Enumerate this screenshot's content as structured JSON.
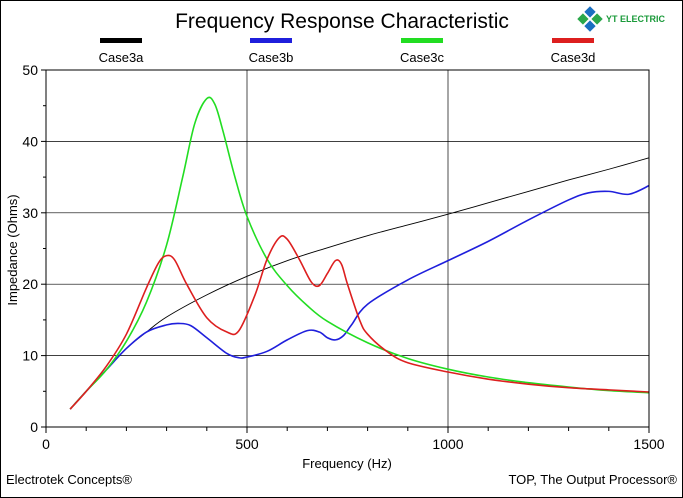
{
  "chart_data": {
    "type": "line",
    "title": "Frequency Response Characteristic",
    "xlabel": "Frequency (Hz)",
    "ylabel": "Impedance (Ohms)",
    "xlim": [
      0,
      1500
    ],
    "ylim": [
      0,
      50
    ],
    "xticks": [
      0,
      500,
      1000,
      1500
    ],
    "yticks": [
      0,
      10,
      20,
      30,
      40,
      50
    ],
    "grid": true,
    "legend_position": "top",
    "series": [
      {
        "name": "Case3a",
        "color": "#000000",
        "x": [
          60,
          100,
          150,
          200,
          250,
          300,
          400,
          500,
          600,
          700,
          800,
          900,
          1000,
          1100,
          1200,
          1300,
          1400,
          1500
        ],
        "y": [
          2.5,
          5.0,
          8.0,
          11.0,
          13.3,
          15.4,
          18.5,
          21.1,
          23.3,
          25.1,
          26.8,
          28.3,
          29.8,
          31.4,
          33.0,
          34.6,
          36.1,
          37.7
        ]
      },
      {
        "name": "Case3b",
        "color": "#1f1fdc",
        "x": [
          60,
          100,
          150,
          200,
          250,
          300,
          330,
          360,
          400,
          450,
          480,
          500,
          550,
          600,
          650,
          680,
          700,
          720,
          740,
          760,
          800,
          900,
          1000,
          1100,
          1200,
          1300,
          1350,
          1400,
          1450,
          1500
        ],
        "y": [
          2.5,
          5.0,
          8.0,
          11.0,
          13.3,
          14.3,
          14.5,
          14.2,
          12.5,
          10.3,
          9.7,
          9.8,
          10.6,
          12.2,
          13.5,
          13.3,
          12.5,
          12.2,
          12.8,
          14.3,
          17.2,
          20.6,
          23.3,
          26.0,
          29.0,
          31.8,
          32.8,
          33.0,
          32.6,
          33.8
        ]
      },
      {
        "name": "Case3c",
        "color": "#22dd22",
        "x": [
          60,
          100,
          150,
          200,
          250,
          300,
          340,
          370,
          400,
          420,
          440,
          470,
          500,
          550,
          600,
          650,
          700,
          800,
          900,
          1000,
          1100,
          1200,
          1300,
          1400,
          1500
        ],
        "y": [
          2.5,
          5.0,
          8.0,
          12.0,
          17.5,
          25.5,
          35.0,
          42.5,
          46.0,
          45.2,
          41.5,
          35.0,
          29.5,
          23.5,
          19.8,
          17.0,
          14.8,
          11.8,
          9.6,
          8.1,
          7.0,
          6.2,
          5.6,
          5.1,
          4.8
        ]
      },
      {
        "name": "Case3d",
        "color": "#dd1f1f",
        "x": [
          60,
          100,
          150,
          200,
          250,
          280,
          300,
          320,
          350,
          400,
          450,
          480,
          520,
          550,
          580,
          600,
          630,
          660,
          680,
          700,
          720,
          735,
          750,
          780,
          800,
          850,
          900,
          1000,
          1100,
          1200,
          1300,
          1400,
          1500
        ],
        "y": [
          2.5,
          5.0,
          8.5,
          13.0,
          19.5,
          23.0,
          24.0,
          23.4,
          20.0,
          15.3,
          13.3,
          13.5,
          18.5,
          23.5,
          26.5,
          26.3,
          23.5,
          20.3,
          19.8,
          21.5,
          23.3,
          22.8,
          20.0,
          15.0,
          13.0,
          10.5,
          9.0,
          7.7,
          6.7,
          6.0,
          5.5,
          5.2,
          4.9
        ]
      }
    ]
  },
  "footer": {
    "left": "Electrotek Concepts®",
    "right": "TOP, The Output Processor®"
  },
  "logo": {
    "text": "YT ELECTRIC"
  }
}
